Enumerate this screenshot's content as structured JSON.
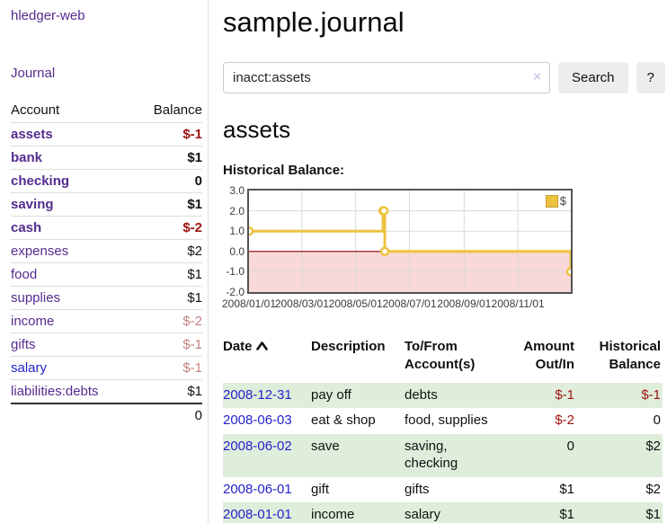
{
  "app": {
    "title": "hledger-web",
    "nav_journal": "Journal"
  },
  "colors": {
    "accent_purple": "#552c90",
    "link_blue": "#2222cc",
    "negative_strong": "#a01414",
    "negative_soft": "#c48282",
    "row_stripe_green": "#dfeedb",
    "chart_series_yellow": "#edc240",
    "chart_negative_fill": "#f9d8d8",
    "chart_zero_line": "#8b0000"
  },
  "sidebar": {
    "header": {
      "account": "Account",
      "balance": "Balance"
    },
    "accounts": [
      {
        "name": "assets",
        "balance": "$-1",
        "level": 0,
        "bold": true,
        "negative": true,
        "visited": true
      },
      {
        "name": "bank",
        "balance": "$1",
        "level": 1,
        "bold": true,
        "negative": false,
        "visited": true
      },
      {
        "name": "checking",
        "balance": "0",
        "level": 2,
        "bold": true,
        "negative": false,
        "visited": true
      },
      {
        "name": "saving",
        "balance": "$1",
        "level": 2,
        "bold": true,
        "negative": false,
        "visited": true
      },
      {
        "name": "cash",
        "balance": "$-2",
        "level": 1,
        "bold": true,
        "negative": true,
        "visited": true
      },
      {
        "name": "expenses",
        "balance": "$2",
        "level": 0,
        "bold": false,
        "negative": false,
        "visited": true
      },
      {
        "name": "food",
        "balance": "$1",
        "level": 1,
        "bold": false,
        "negative": false,
        "visited": true
      },
      {
        "name": "supplies",
        "balance": "$1",
        "level": 1,
        "bold": false,
        "negative": false,
        "visited": true
      },
      {
        "name": "income",
        "balance": "$-2",
        "level": 0,
        "bold": false,
        "negative": true,
        "visited": true
      },
      {
        "name": "gifts",
        "balance": "$-1",
        "level": 1,
        "bold": false,
        "negative": true,
        "visited": true
      },
      {
        "name": "salary",
        "balance": "$-1",
        "level": 1,
        "bold": false,
        "negative": true,
        "visited": false
      },
      {
        "name": "liabilities:debts",
        "balance": "$1",
        "level": 0,
        "bold": false,
        "negative": false,
        "visited": true
      }
    ],
    "total": "0"
  },
  "main": {
    "title": "sample.journal",
    "search": {
      "value": "inacct:assets",
      "clear_icon": "×",
      "button": "Search",
      "help": "?"
    },
    "account_heading": "assets",
    "section_label": "Historical Balance:"
  },
  "chart_data": {
    "type": "line",
    "title": "Historical Balance:",
    "legend": "top-right",
    "grid": true,
    "ylim": [
      -2,
      3
    ],
    "day_range": [
      0,
      365
    ],
    "y_ticks": [
      {
        "label": "3.0",
        "value": 3
      },
      {
        "label": "2.0",
        "value": 2
      },
      {
        "label": "1.0",
        "value": 1
      },
      {
        "label": "0.0",
        "value": 0
      },
      {
        "label": "-1.0",
        "value": -1
      },
      {
        "label": "-2.0",
        "value": -2
      }
    ],
    "x_ticks": [
      {
        "label": "2008/01/01",
        "day": 0
      },
      {
        "label": "2008/03/01",
        "day": 60
      },
      {
        "label": "2008/05/01",
        "day": 121
      },
      {
        "label": "2008/07/01",
        "day": 182
      },
      {
        "label": "2008/09/01",
        "day": 244
      },
      {
        "label": "2008/11/01",
        "day": 305
      }
    ],
    "series": [
      {
        "name": "$",
        "color": "#edc240",
        "style": "step-after",
        "points": [
          {
            "date": "2008-01-01",
            "day": 0,
            "value": 1
          },
          {
            "date": "2008-06-01",
            "day": 152,
            "value": 2
          },
          {
            "date": "2008-06-02",
            "day": 153,
            "value": 2
          },
          {
            "date": "2008-06-03",
            "day": 154,
            "value": 0
          },
          {
            "date": "2008-12-31",
            "day": 365,
            "value": -1
          }
        ]
      }
    ]
  },
  "register": {
    "columns": [
      {
        "line1": "Date",
        "line2": "",
        "sortable": true
      },
      {
        "line1": "Description",
        "line2": ""
      },
      {
        "line1": "To/From",
        "line2": "Account(s)"
      },
      {
        "line1": "Amount",
        "line2": "Out/In",
        "align": "right"
      },
      {
        "line1": "Historical",
        "line2": "Balance",
        "align": "right"
      }
    ],
    "rows": [
      {
        "date": "2008-12-31",
        "description": "pay off",
        "accounts": "debts",
        "amount": "$-1",
        "amount_negative": true,
        "balance": "$-1",
        "balance_negative": true
      },
      {
        "date": "2008-06-03",
        "description": "eat & shop",
        "accounts": "food, supplies",
        "amount": "$-2",
        "amount_negative": true,
        "balance": "0",
        "balance_negative": false
      },
      {
        "date": "2008-06-02",
        "description": "save",
        "accounts": "saving, checking",
        "amount": "0",
        "amount_negative": false,
        "balance": "$2",
        "balance_negative": false
      },
      {
        "date": "2008-06-01",
        "description": "gift",
        "accounts": "gifts",
        "amount": "$1",
        "amount_negative": false,
        "balance": "$2",
        "balance_negative": false
      },
      {
        "date": "2008-01-01",
        "description": "income",
        "accounts": "salary",
        "amount": "$1",
        "amount_negative": false,
        "balance": "$1",
        "balance_negative": false
      }
    ]
  }
}
